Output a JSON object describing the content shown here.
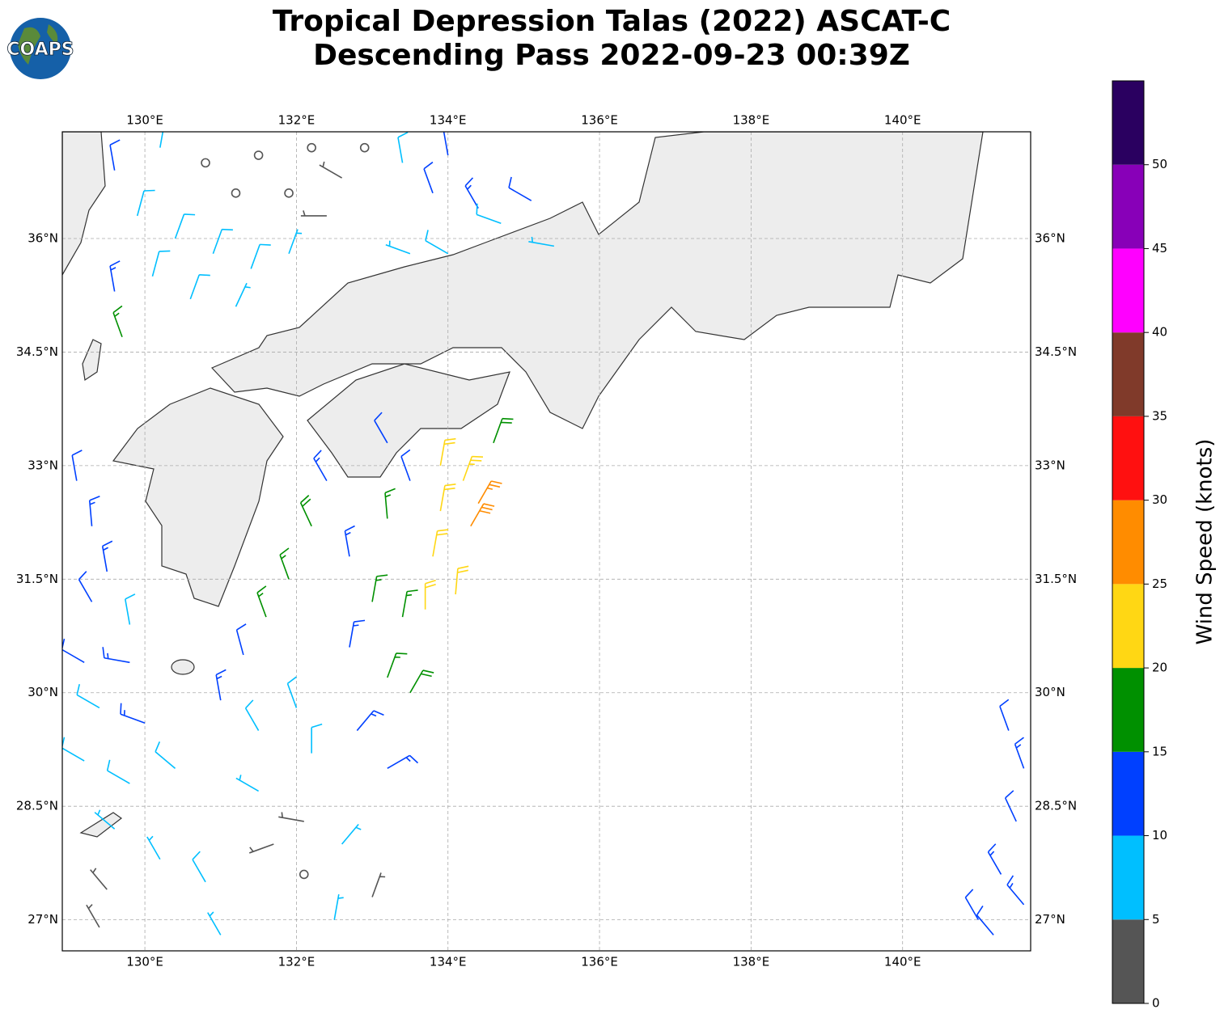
{
  "header": {
    "logo_text": "COAPS",
    "title": [
      "Tropical Depression Talas (2022) ASCAT-C",
      "Descending Pass 2022-09-23 00:39Z"
    ]
  },
  "map": {
    "type": "barbs",
    "xlim": [
      128.91,
      141.69
    ],
    "ylim": [
      26.59,
      37.41
    ],
    "grid": true,
    "xticks": [
      {
        "value": 130,
        "label": "130°E"
      },
      {
        "value": 132,
        "label": "132°E"
      },
      {
        "value": 134,
        "label": "134°E"
      },
      {
        "value": 136,
        "label": "136°E"
      },
      {
        "value": 138,
        "label": "138°E"
      },
      {
        "value": 140,
        "label": "140°E"
      }
    ],
    "yticks": [
      {
        "value": 27,
        "label": "27°N"
      },
      {
        "value": 28.5,
        "label": "28.5°N"
      },
      {
        "value": 30,
        "label": "30°N"
      },
      {
        "value": 31.5,
        "label": "31.5°N"
      },
      {
        "value": 33,
        "label": "33°N"
      },
      {
        "value": 34.5,
        "label": "34.5°N"
      },
      {
        "value": 36,
        "label": "36°N"
      }
    ],
    "barbs": [
      [
        129.6,
        36.9,
        12,
        350
      ],
      [
        130.2,
        37.2,
        8,
        10
      ],
      [
        129.9,
        36.3,
        8,
        15
      ],
      [
        130.4,
        36.0,
        8,
        20
      ],
      [
        130.9,
        35.8,
        8,
        20
      ],
      [
        131.4,
        35.6,
        8,
        20
      ],
      [
        131.9,
        35.8,
        7,
        20
      ],
      [
        130.1,
        35.5,
        8,
        15
      ],
      [
        130.6,
        35.2,
        8,
        20
      ],
      [
        131.2,
        35.1,
        7,
        25
      ],
      [
        129.6,
        35.3,
        13,
        350
      ],
      [
        129.7,
        34.7,
        16,
        340
      ],
      [
        130.8,
        37.0,
        1,
        0
      ],
      [
        131.5,
        37.1,
        1,
        0
      ],
      [
        132.2,
        37.2,
        1,
        0
      ],
      [
        132.9,
        37.2,
        1,
        0
      ],
      [
        131.2,
        36.6,
        1,
        0
      ],
      [
        131.9,
        36.6,
        1,
        0
      ],
      [
        132.6,
        36.8,
        3,
        300
      ],
      [
        132.4,
        36.3,
        3,
        270
      ],
      [
        133.4,
        37.0,
        8,
        350
      ],
      [
        134.0,
        37.1,
        11,
        350
      ],
      [
        133.8,
        36.6,
        11,
        340
      ],
      [
        134.4,
        36.4,
        13,
        330
      ],
      [
        135.1,
        36.5,
        12,
        300
      ],
      [
        134.0,
        35.8,
        8,
        300
      ],
      [
        134.7,
        36.2,
        8,
        290
      ],
      [
        135.4,
        35.9,
        7,
        280
      ],
      [
        133.5,
        35.8,
        7,
        290
      ],
      [
        129.1,
        32.8,
        12,
        350
      ],
      [
        129.3,
        32.2,
        13,
        355
      ],
      [
        129.5,
        31.6,
        13,
        350
      ],
      [
        129.3,
        31.2,
        12,
        330
      ],
      [
        129.8,
        30.9,
        8,
        350
      ],
      [
        129.2,
        30.4,
        12,
        300
      ],
      [
        129.8,
        30.4,
        13,
        280
      ],
      [
        129.4,
        29.8,
        8,
        300
      ],
      [
        130.0,
        29.6,
        13,
        290
      ],
      [
        129.2,
        29.1,
        8,
        300
      ],
      [
        129.8,
        28.8,
        8,
        300
      ],
      [
        130.4,
        29.0,
        8,
        310
      ],
      [
        129.6,
        28.2,
        7,
        310
      ],
      [
        130.2,
        27.8,
        7,
        330
      ],
      [
        129.5,
        27.4,
        4,
        320
      ],
      [
        130.8,
        27.5,
        8,
        330
      ],
      [
        129.4,
        26.9,
        3,
        330
      ],
      [
        131.0,
        29.9,
        13,
        350
      ],
      [
        131.3,
        30.5,
        12,
        345
      ],
      [
        131.6,
        31.0,
        16,
        340
      ],
      [
        131.9,
        31.5,
        16,
        340
      ],
      [
        132.2,
        32.2,
        18,
        335
      ],
      [
        132.4,
        32.8,
        14,
        330
      ],
      [
        131.5,
        29.5,
        8,
        330
      ],
      [
        132.0,
        29.8,
        8,
        340
      ],
      [
        132.2,
        29.2,
        8,
        0
      ],
      [
        131.5,
        28.7,
        7,
        300
      ],
      [
        132.1,
        28.3,
        4,
        280
      ],
      [
        131.7,
        28.0,
        3,
        250
      ],
      [
        132.1,
        27.6,
        2,
        0
      ],
      [
        132.6,
        28.0,
        7,
        40
      ],
      [
        133.0,
        27.3,
        3,
        20
      ],
      [
        132.5,
        27.0,
        7,
        10
      ],
      [
        131.0,
        26.8,
        7,
        330
      ],
      [
        132.8,
        29.5,
        13,
        40
      ],
      [
        133.2,
        29.0,
        13,
        60
      ],
      [
        132.7,
        30.6,
        13,
        10
      ],
      [
        133.0,
        31.2,
        16,
        10
      ],
      [
        133.2,
        30.2,
        17,
        20
      ],
      [
        133.5,
        30.0,
        18,
        30
      ],
      [
        133.4,
        31.0,
        17,
        10
      ],
      [
        132.7,
        31.8,
        13,
        350
      ],
      [
        133.2,
        32.3,
        16,
        355
      ],
      [
        133.5,
        32.8,
        12,
        340
      ],
      [
        133.9,
        32.4,
        22,
        10
      ],
      [
        134.2,
        32.8,
        23,
        20
      ],
      [
        134.4,
        32.5,
        27,
        30
      ],
      [
        133.8,
        31.8,
        22,
        10
      ],
      [
        134.1,
        31.3,
        21,
        5
      ],
      [
        133.7,
        31.1,
        21,
        0
      ],
      [
        134.6,
        33.3,
        18,
        20
      ],
      [
        133.9,
        33.0,
        22,
        10
      ],
      [
        134.3,
        32.2,
        28,
        30
      ],
      [
        133.2,
        33.3,
        12,
        330
      ],
      [
        141.0,
        27.0,
        12,
        330
      ],
      [
        141.3,
        27.6,
        13,
        330
      ],
      [
        141.5,
        28.3,
        12,
        335
      ],
      [
        141.6,
        29.0,
        13,
        340
      ],
      [
        141.4,
        29.5,
        12,
        340
      ],
      [
        141.2,
        26.8,
        12,
        320
      ],
      [
        141.6,
        27.2,
        13,
        320
      ]
    ]
  },
  "colorbar": {
    "label": "Wind Speed (knots)",
    "lim": [
      0,
      55
    ],
    "ticks": [
      0,
      5,
      10,
      15,
      20,
      25,
      30,
      35,
      40,
      45,
      50
    ],
    "colors": [
      "#555555",
      "#00bfff",
      "#0040ff",
      "#009000",
      "#ffd714",
      "#ff8c00",
      "#ff1010",
      "#803a2a",
      "#ff00ff",
      "#8800b8",
      "#2a0060"
    ]
  }
}
